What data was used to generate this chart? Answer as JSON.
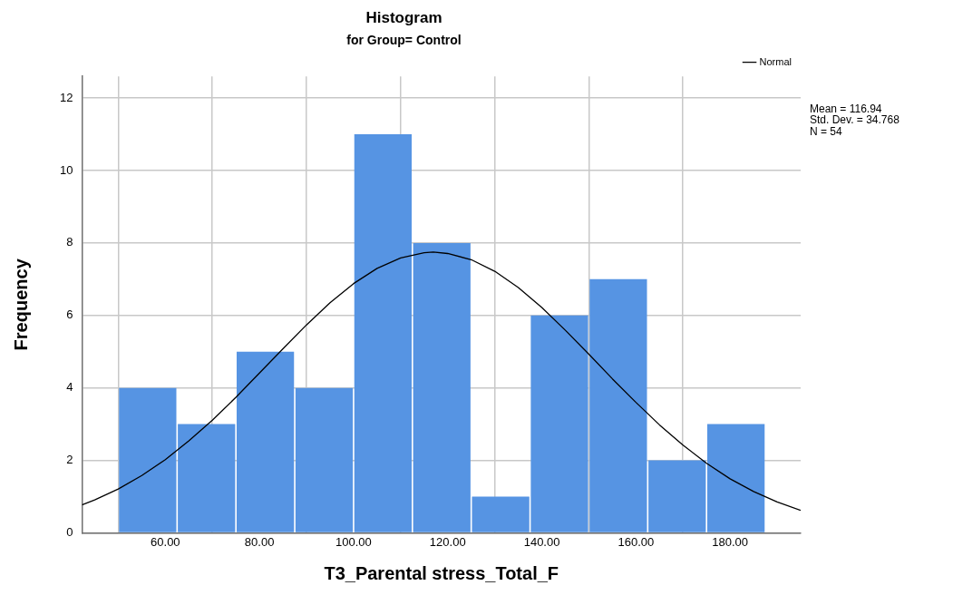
{
  "chart_data": {
    "type": "histogram",
    "title": "Histogram",
    "subtitle": "for Group= Control",
    "xlabel": "T3_Parental stress_Total_F",
    "ylabel": "Frequency",
    "bins": [
      50,
      62.5,
      75,
      87.5,
      100,
      112.5,
      125,
      137.5,
      150,
      162.5,
      175,
      187.5
    ],
    "values": [
      4,
      3,
      5,
      4,
      11,
      8,
      1,
      6,
      7,
      2,
      3
    ],
    "color": "#5694e3",
    "series": [
      {
        "type": "line",
        "name": "Normal",
        "color": "#000000",
        "x": [
          42.3,
          45,
          50,
          55,
          60,
          65,
          70,
          75,
          80,
          85,
          90,
          95,
          100,
          105,
          110,
          115,
          116.94,
          120,
          125,
          130,
          135,
          140,
          145,
          150,
          155,
          160,
          165,
          170,
          175,
          180,
          185,
          190,
          195
        ],
        "values": [
          0.77,
          0.91,
          1.21,
          1.58,
          2.02,
          2.54,
          3.11,
          3.74,
          4.41,
          5.08,
          5.74,
          6.35,
          6.88,
          7.3,
          7.59,
          7.73,
          7.75,
          7.71,
          7.54,
          7.22,
          6.77,
          6.22,
          5.59,
          4.93,
          4.25,
          3.6,
          2.98,
          2.42,
          1.92,
          1.49,
          1.14,
          0.85,
          0.62
        ]
      }
    ],
    "xlim": [
      42.3,
      195
    ],
    "xticks": [
      {
        "value": 60,
        "label": "60.00"
      },
      {
        "value": 80,
        "label": "80.00"
      },
      {
        "value": 100,
        "label": "100.00"
      },
      {
        "value": 120,
        "label": "120.00"
      },
      {
        "value": 140,
        "label": "140.00"
      },
      {
        "value": 160,
        "label": "160.00"
      },
      {
        "value": 180,
        "label": "180.00"
      }
    ],
    "ylim": [
      0,
      12.6
    ],
    "yticks": [
      0,
      2,
      4,
      6,
      8,
      10,
      12
    ],
    "grid": true,
    "legend": "top right",
    "annotations": [
      "Mean = 116.94",
      "Std. Dev. = 34.768",
      "N = 54"
    ]
  }
}
